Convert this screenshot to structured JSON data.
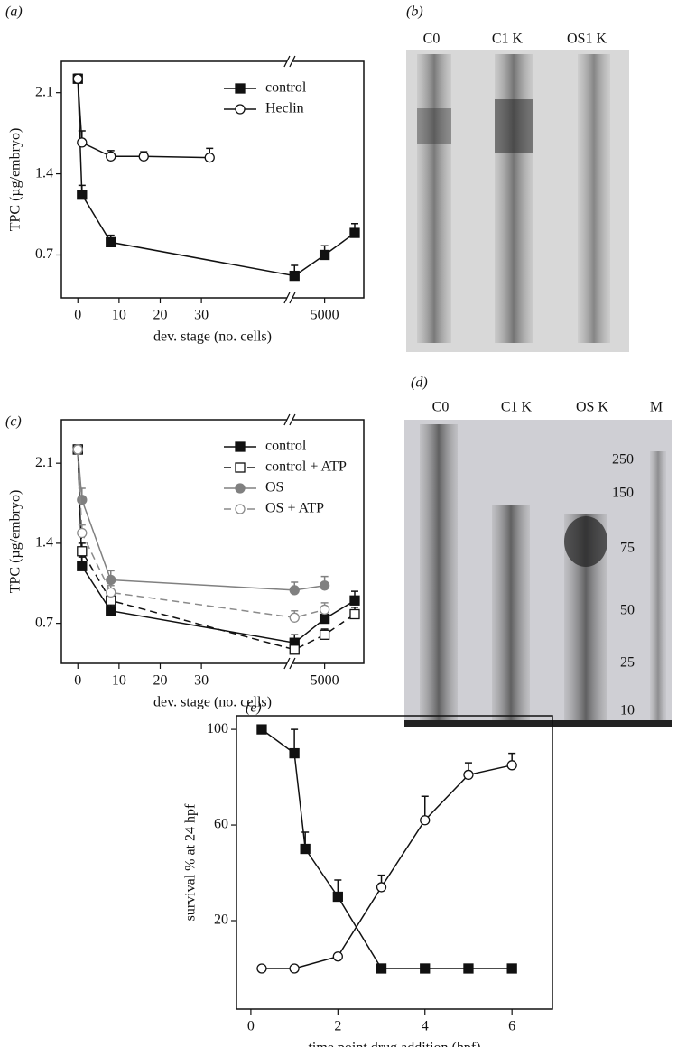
{
  "chart_data": [
    {
      "type": "line",
      "panel": "(a)",
      "xlabel": "dev. stage (no. cells)",
      "ylabel": "TPC (µg/embryo)",
      "xlim": [
        -4,
        6300
      ],
      "xbreak": [
        51,
        3900
      ],
      "xticks": [
        0,
        10,
        20,
        30,
        5000
      ],
      "ylim": [
        0.33,
        2.37
      ],
      "yticks": [
        0.7,
        1.4,
        2.1
      ],
      "legend": "upper right",
      "series": [
        {
          "name": "control",
          "color": "#111111",
          "marker": "square",
          "filled": true,
          "dash": false,
          "x": [
            0,
            1,
            8,
            4000,
            5000,
            6000
          ],
          "values": [
            2.22,
            1.22,
            0.81,
            0.52,
            0.7,
            0.89
          ],
          "errors": [
            0.04,
            0.08,
            0.06,
            0.09,
            0.08,
            0.08
          ]
        },
        {
          "name": "Heclin",
          "color": "#111111",
          "marker": "circle",
          "filled": false,
          "dash": false,
          "x": [
            0,
            1,
            8,
            16,
            32
          ],
          "values": [
            2.22,
            1.67,
            1.55,
            1.55,
            1.54
          ],
          "errors": [
            0.03,
            0.1,
            0.05,
            0.04,
            0.08
          ]
        }
      ]
    },
    {
      "type": "line",
      "panel": "(c)",
      "xlabel": "dev. stage (no. cells)",
      "ylabel": "TPC (µg/embryo)",
      "xlim": [
        -4,
        6300
      ],
      "xbreak": [
        51,
        3900
      ],
      "xticks": [
        0,
        10,
        20,
        30,
        5000
      ],
      "ylim": [
        0.35,
        2.48
      ],
      "yticks": [
        0.7,
        1.4,
        2.1
      ],
      "legend": "upper right",
      "series": [
        {
          "name": "control",
          "color": "#111111",
          "marker": "square",
          "filled": true,
          "dash": false,
          "x": [
            0,
            1,
            8,
            4000,
            5000,
            6000
          ],
          "values": [
            2.22,
            1.2,
            0.81,
            0.53,
            0.74,
            0.9
          ],
          "errors": [
            0.03,
            0.08,
            0.06,
            0.07,
            0.07,
            0.08
          ]
        },
        {
          "name": "control + ATP",
          "color": "#111111",
          "marker": "square",
          "filled": false,
          "dash": true,
          "x": [
            0,
            1,
            8,
            4000,
            5000,
            6000
          ],
          "values": [
            2.22,
            1.33,
            0.9,
            0.47,
            0.6,
            0.78
          ],
          "errors": [
            0.03,
            0.07,
            0.06,
            0.07,
            0.05,
            0.06
          ]
        },
        {
          "name": "OS",
          "color": "#808080",
          "marker": "circle",
          "filled": true,
          "dash": false,
          "x": [
            0,
            1,
            8,
            4000,
            5000
          ],
          "values": [
            2.22,
            1.78,
            1.08,
            0.99,
            1.03
          ],
          "errors": [
            0.03,
            0.1,
            0.08,
            0.07,
            0.08
          ]
        },
        {
          "name": "OS + ATP",
          "color": "#8a8a8a",
          "marker": "circle",
          "filled": false,
          "dash": true,
          "x": [
            0,
            1,
            8,
            4000,
            5000
          ],
          "values": [
            2.22,
            1.49,
            0.97,
            0.75,
            0.82
          ],
          "errors": [
            0.03,
            0.07,
            0.06,
            0.06,
            0.06
          ]
        }
      ]
    },
    {
      "type": "line",
      "panel": "(e)",
      "xlabel": "time point drug addition (hpf)",
      "ylabel": "survival % at 24 hpf",
      "xlim": [
        -0.33,
        6.93
      ],
      "xticks": [
        0,
        2,
        4,
        6
      ],
      "ylim": [
        -17,
        105.7
      ],
      "yticks": [
        20,
        60,
        100
      ],
      "series": [
        {
          "color": "#111111",
          "marker": "square",
          "filled": true,
          "dash": false,
          "x": [
            0.25,
            1,
            1.25,
            2,
            3,
            4,
            5,
            6
          ],
          "values": [
            100,
            90,
            50,
            30,
            0,
            0,
            0,
            0
          ],
          "errors": [
            0,
            10,
            7,
            7,
            0,
            0,
            0,
            0
          ]
        },
        {
          "color": "#111111",
          "marker": "circle",
          "filled": false,
          "dash": false,
          "x": [
            0.25,
            1,
            2,
            3,
            4,
            5,
            6
          ],
          "values": [
            0,
            0,
            5,
            34,
            62,
            81,
            85
          ],
          "errors": [
            0,
            0,
            0,
            5,
            10,
            5,
            5
          ]
        }
      ]
    }
  ],
  "gels": [
    {
      "panel": "(b)",
      "lanes": [
        "C0",
        "C1 K",
        "OS1 K"
      ]
    },
    {
      "panel": "(d)",
      "lanes": [
        "C0",
        "C1 K",
        "OS K",
        "M"
      ],
      "markers": [
        250,
        150,
        75,
        50,
        25,
        10
      ]
    }
  ]
}
